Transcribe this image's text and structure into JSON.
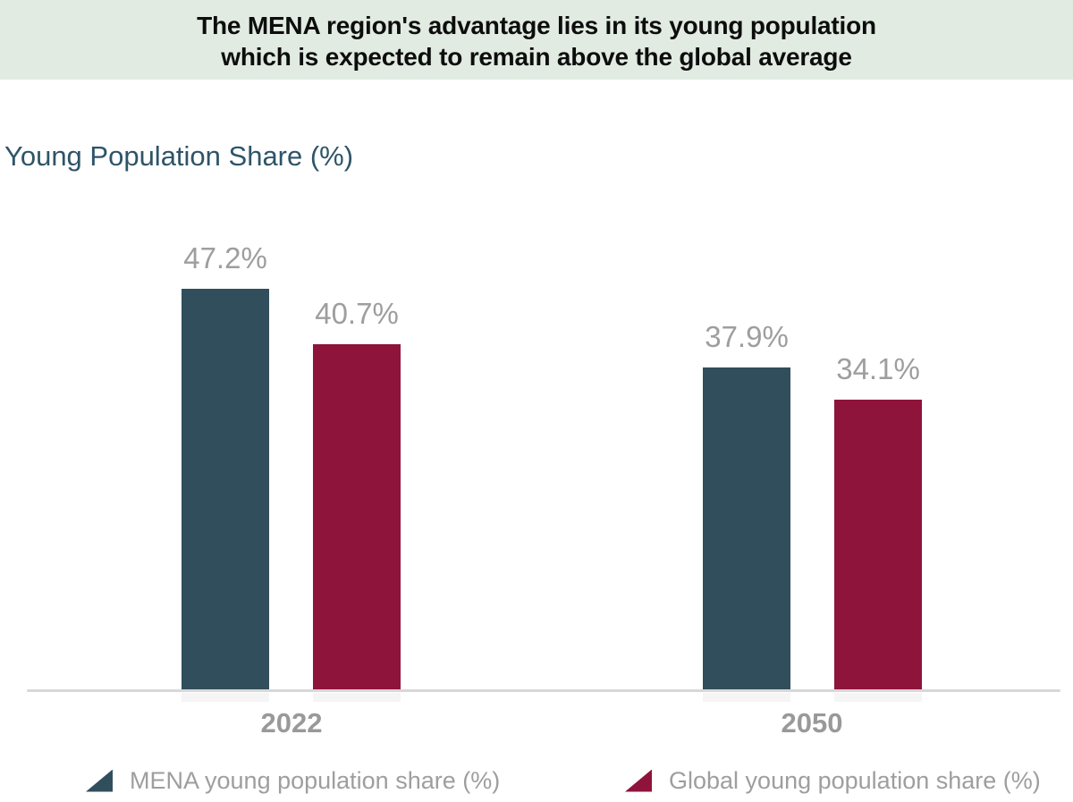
{
  "banner": {
    "line1": "The MENA region's advantage lies in its young population",
    "line2": "which is expected to remain above the global average"
  },
  "chart_data": {
    "type": "bar",
    "title": "Young Population Share (%)",
    "categories": [
      "2022",
      "2050"
    ],
    "series": [
      {
        "name": "MENA young population share (%)",
        "color": "#314e5c",
        "values": [
          47.2,
          37.9
        ]
      },
      {
        "name": "Global young population share (%)",
        "color": "#8e143c",
        "values": [
          40.7,
          34.1
        ]
      }
    ],
    "value_suffix": "%",
    "ylim": [
      0,
      50
    ],
    "grid": false,
    "data_labels": true,
    "legend_position": "bottom",
    "xlabel": "",
    "ylabel": ""
  },
  "colors": {
    "banner_background": "#e1ebe2",
    "banner_text": "#0d0d0d",
    "chart_title": "#2e5468",
    "data_label": "#9e9e9e",
    "category_label": "#999999",
    "axis_line": "#d8d8d8",
    "mena_bar": "#314e5c",
    "global_bar": "#8e143c"
  }
}
